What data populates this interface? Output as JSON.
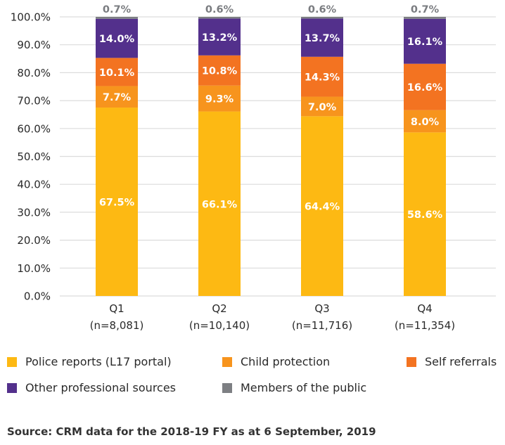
{
  "chart_data": {
    "type": "bar",
    "stacked": true,
    "title": "",
    "xlabel": "",
    "ylabel": "",
    "ylim": [
      0,
      100
    ],
    "yticks": [
      "0.0%",
      "10.0%",
      "20.0%",
      "30.0%",
      "40.0%",
      "50.0%",
      "60.0%",
      "70.0%",
      "80.0%",
      "90.0%",
      "100.0%"
    ],
    "grid": true,
    "legend_position": "bottom",
    "categories": [
      "Q1",
      "Q2",
      "Q3",
      "Q4"
    ],
    "category_sublabels": [
      "(n=8,081)",
      "(n=10,140)",
      "(n=11,716)",
      "(n=11,354)"
    ],
    "series": [
      {
        "name": "Police reports (L17 portal)",
        "color": "#FDB913",
        "values": [
          67.5,
          66.1,
          64.4,
          58.6
        ]
      },
      {
        "name": "Child protection",
        "color": "#F7941D",
        "values": [
          7.7,
          9.3,
          7.0,
          8.0
        ]
      },
      {
        "name": "Self referrals",
        "color": "#F37321",
        "values": [
          10.1,
          10.8,
          14.3,
          16.6
        ]
      },
      {
        "name": "Other professional sources",
        "color": "#53308C",
        "values": [
          14.0,
          13.2,
          13.7,
          16.1
        ]
      },
      {
        "name": "Members of the public",
        "color": "#7D7F83",
        "values": [
          0.7,
          0.6,
          0.6,
          0.7
        ]
      }
    ],
    "data_labels": [
      [
        "67.5%",
        "66.1%",
        "64.4%",
        "58.6%"
      ],
      [
        "7.7%",
        "9.3%",
        "7.0%",
        "8.0%"
      ],
      [
        "10.1%",
        "10.8%",
        "14.3%",
        "16.6%"
      ],
      [
        "14.0%",
        "13.2%",
        "13.7%",
        "16.1%"
      ],
      [
        "0.7%",
        "0.6%",
        "0.6%",
        "0.7%"
      ]
    ]
  },
  "legend": {
    "items": [
      {
        "label": "Police reports (L17 portal)",
        "color": "#FDB913"
      },
      {
        "label": "Child protection",
        "color": "#F7941D"
      },
      {
        "label": "Self referrals",
        "color": "#F37321"
      },
      {
        "label": "Other professional sources",
        "color": "#53308C"
      },
      {
        "label": "Members of the public",
        "color": "#7D7F83"
      }
    ]
  },
  "source": "Source: CRM data for the 2018-19 FY as at 6 September, 2019"
}
